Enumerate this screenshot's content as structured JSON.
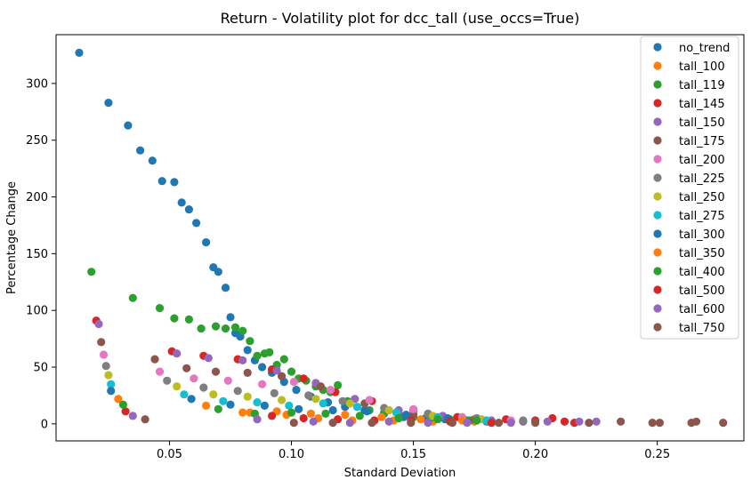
{
  "chart_data": {
    "type": "scatter",
    "title": "Return - Volatility plot for dcc_tall (use_occs=True)",
    "xlabel": "Standard Deviation",
    "ylabel": "Percentage Change",
    "xlim": [
      0.0035,
      0.2855
    ],
    "ylim": [
      -15,
      343
    ],
    "x_ticks": [
      0.05,
      0.1,
      0.15,
      0.2,
      0.25
    ],
    "x_tick_labels": [
      "0.05",
      "0.10",
      "0.15",
      "0.20",
      "0.25"
    ],
    "y_ticks": [
      0,
      50,
      100,
      150,
      200,
      250,
      300
    ],
    "y_tick_labels": [
      "0",
      "50",
      "100",
      "150",
      "200",
      "250",
      "300"
    ],
    "grid": false,
    "legend_position": "top-right",
    "series": [
      {
        "name": "no_trend",
        "color": "#1f77b4",
        "points": [
          [
            0.013,
            327
          ],
          [
            0.025,
            283
          ],
          [
            0.033,
            263
          ],
          [
            0.038,
            241
          ],
          [
            0.043,
            232
          ],
          [
            0.047,
            214
          ],
          [
            0.052,
            213
          ],
          [
            0.055,
            195
          ],
          [
            0.058,
            189
          ],
          [
            0.061,
            177
          ],
          [
            0.065,
            160
          ],
          [
            0.068,
            138
          ],
          [
            0.07,
            134
          ],
          [
            0.073,
            120
          ],
          [
            0.075,
            94
          ],
          [
            0.077,
            80
          ],
          [
            0.079,
            77
          ],
          [
            0.082,
            65
          ],
          [
            0.085,
            56
          ],
          [
            0.088,
            50
          ],
          [
            0.092,
            45
          ],
          [
            0.097,
            37
          ],
          [
            0.102,
            30
          ],
          [
            0.108,
            24
          ],
          [
            0.115,
            19
          ],
          [
            0.122,
            15
          ],
          [
            0.13,
            12
          ],
          [
            0.138,
            9
          ],
          [
            0.146,
            6
          ],
          [
            0.155,
            5
          ],
          [
            0.163,
            4
          ],
          [
            0.172,
            3
          ],
          [
            0.18,
            2
          ],
          [
            0.19,
            2
          ]
        ]
      },
      {
        "name": "tall_100",
        "color": "#ff7f0e",
        "points": [
          [
            0.029,
            22
          ],
          [
            0.065,
            16
          ],
          [
            0.083,
            10
          ],
          [
            0.098,
            8
          ],
          [
            0.111,
            5
          ],
          [
            0.125,
            3
          ],
          [
            0.142,
            3
          ],
          [
            0.158,
            2
          ],
          [
            0.175,
            2
          ],
          [
            0.195,
            2
          ]
        ]
      },
      {
        "name": "tall_119",
        "color": "#2ca02c",
        "points": [
          [
            0.018,
            134
          ],
          [
            0.035,
            111
          ],
          [
            0.046,
            102
          ],
          [
            0.052,
            93
          ],
          [
            0.058,
            92
          ],
          [
            0.063,
            84
          ],
          [
            0.069,
            86
          ],
          [
            0.073,
            84
          ],
          [
            0.077,
            85
          ],
          [
            0.08,
            82
          ],
          [
            0.083,
            73
          ],
          [
            0.086,
            60
          ],
          [
            0.089,
            62
          ],
          [
            0.091,
            63
          ],
          [
            0.094,
            52
          ],
          [
            0.097,
            57
          ],
          [
            0.1,
            46
          ],
          [
            0.103,
            40
          ],
          [
            0.106,
            38
          ],
          [
            0.11,
            33
          ],
          [
            0.113,
            30
          ],
          [
            0.116,
            28
          ],
          [
            0.119,
            34
          ],
          [
            0.123,
            20
          ],
          [
            0.127,
            15
          ],
          [
            0.132,
            12
          ],
          [
            0.138,
            10
          ],
          [
            0.144,
            8
          ],
          [
            0.15,
            6
          ],
          [
            0.157,
            5
          ],
          [
            0.165,
            4
          ],
          [
            0.173,
            3
          ],
          [
            0.182,
            2
          ],
          [
            0.19,
            2
          ]
        ]
      },
      {
        "name": "tall_145",
        "color": "#d62728",
        "points": [
          [
            0.02,
            91
          ],
          [
            0.032,
            11
          ],
          [
            0.051,
            64
          ],
          [
            0.064,
            60
          ],
          [
            0.078,
            57
          ],
          [
            0.092,
            48
          ],
          [
            0.105,
            40
          ],
          [
            0.118,
            28
          ],
          [
            0.133,
            20
          ],
          [
            0.15,
            12
          ],
          [
            0.168,
            6
          ],
          [
            0.188,
            4
          ],
          [
            0.2,
            3
          ],
          [
            0.207,
            5
          ],
          [
            0.212,
            2
          ],
          [
            0.216,
            1
          ]
        ]
      },
      {
        "name": "tall_150",
        "color": "#9467bd",
        "points": [
          [
            0.021,
            88
          ],
          [
            0.035,
            7
          ],
          [
            0.053,
            62
          ],
          [
            0.066,
            58
          ],
          [
            0.08,
            56
          ],
          [
            0.094,
            47
          ],
          [
            0.11,
            36
          ],
          [
            0.126,
            22
          ],
          [
            0.144,
            12
          ],
          [
            0.162,
            7
          ],
          [
            0.182,
            3
          ],
          [
            0.195,
            2
          ],
          [
            0.205,
            2
          ],
          [
            0.218,
            2
          ],
          [
            0.225,
            2
          ]
        ]
      },
      {
        "name": "tall_175",
        "color": "#8c564b",
        "points": [
          [
            0.022,
            72
          ],
          [
            0.04,
            4
          ],
          [
            0.044,
            57
          ],
          [
            0.057,
            49
          ],
          [
            0.069,
            46
          ],
          [
            0.082,
            45
          ],
          [
            0.096,
            42
          ],
          [
            0.112,
            33
          ],
          [
            0.13,
            18
          ],
          [
            0.15,
            8
          ],
          [
            0.175,
            4
          ],
          [
            0.2,
            1
          ],
          [
            0.222,
            1
          ],
          [
            0.235,
            2
          ],
          [
            0.248,
            1
          ],
          [
            0.251,
            1
          ],
          [
            0.264,
            1
          ],
          [
            0.266,
            2
          ],
          [
            0.277,
            1
          ]
        ]
      },
      {
        "name": "tall_200",
        "color": "#e377c2",
        "points": [
          [
            0.023,
            61
          ],
          [
            0.046,
            46
          ],
          [
            0.06,
            40
          ],
          [
            0.074,
            38
          ],
          [
            0.088,
            35
          ],
          [
            0.101,
            37
          ],
          [
            0.116,
            30
          ],
          [
            0.132,
            21
          ],
          [
            0.15,
            13
          ],
          [
            0.17,
            6
          ],
          [
            0.19,
            3
          ]
        ]
      },
      {
        "name": "tall_225",
        "color": "#7f7f7f",
        "points": [
          [
            0.024,
            51
          ],
          [
            0.049,
            38
          ],
          [
            0.064,
            32
          ],
          [
            0.078,
            29
          ],
          [
            0.093,
            27
          ],
          [
            0.107,
            25
          ],
          [
            0.121,
            20
          ],
          [
            0.138,
            14
          ],
          [
            0.156,
            9
          ],
          [
            0.176,
            5
          ],
          [
            0.195,
            3
          ]
        ]
      },
      {
        "name": "tall_250",
        "color": "#bcbd22",
        "points": [
          [
            0.025,
            43
          ],
          [
            0.053,
            33
          ],
          [
            0.068,
            26
          ],
          [
            0.082,
            24
          ],
          [
            0.096,
            21
          ],
          [
            0.11,
            22
          ],
          [
            0.124,
            18
          ],
          [
            0.14,
            12
          ],
          [
            0.158,
            7
          ],
          [
            0.178,
            4
          ]
        ]
      },
      {
        "name": "tall_275",
        "color": "#17becf",
        "points": [
          [
            0.026,
            35
          ],
          [
            0.056,
            26
          ],
          [
            0.072,
            20
          ],
          [
            0.086,
            19
          ],
          [
            0.099,
            16
          ],
          [
            0.113,
            18
          ],
          [
            0.127,
            15
          ],
          [
            0.143,
            10
          ],
          [
            0.16,
            6
          ],
          [
            0.18,
            3
          ]
        ]
      },
      {
        "name": "tall_300",
        "color": "#1f77b4",
        "points": [
          [
            0.026,
            29
          ],
          [
            0.059,
            22
          ],
          [
            0.075,
            17
          ],
          [
            0.089,
            16
          ],
          [
            0.103,
            13
          ],
          [
            0.117,
            12
          ],
          [
            0.131,
            11
          ],
          [
            0.147,
            8
          ],
          [
            0.164,
            5
          ]
        ]
      },
      {
        "name": "tall_350",
        "color": "#ff7f0e",
        "points": [
          [
            0.08,
            10
          ],
          [
            0.094,
            11
          ],
          [
            0.108,
            9
          ],
          [
            0.122,
            8
          ],
          [
            0.137,
            6
          ],
          [
            0.153,
            4
          ],
          [
            0.17,
            3
          ]
        ]
      },
      {
        "name": "tall_400",
        "color": "#2ca02c",
        "points": [
          [
            0.031,
            17
          ],
          [
            0.07,
            13
          ],
          [
            0.085,
            9
          ],
          [
            0.1,
            10
          ],
          [
            0.114,
            9
          ],
          [
            0.128,
            7
          ],
          [
            0.144,
            5
          ],
          [
            0.16,
            4
          ],
          [
            0.176,
            3
          ]
        ]
      },
      {
        "name": "tall_500",
        "color": "#d62728",
        "points": [
          [
            0.092,
            7
          ],
          [
            0.105,
            5
          ],
          [
            0.119,
            4
          ],
          [
            0.134,
            3
          ],
          [
            0.149,
            3
          ],
          [
            0.165,
            2
          ],
          [
            0.182,
            1
          ]
        ]
      },
      {
        "name": "tall_600",
        "color": "#9467bd",
        "points": [
          [
            0.086,
            4
          ],
          [
            0.109,
            2
          ],
          [
            0.124,
            1
          ],
          [
            0.14,
            2
          ],
          [
            0.156,
            1
          ],
          [
            0.172,
            1
          ],
          [
            0.19,
            1
          ]
        ]
      },
      {
        "name": "tall_750",
        "color": "#8c564b",
        "points": [
          [
            0.101,
            1
          ],
          [
            0.117,
            1
          ],
          [
            0.133,
            1
          ],
          [
            0.149,
            1
          ],
          [
            0.166,
            1
          ],
          [
            0.185,
            1
          ]
        ]
      }
    ]
  }
}
